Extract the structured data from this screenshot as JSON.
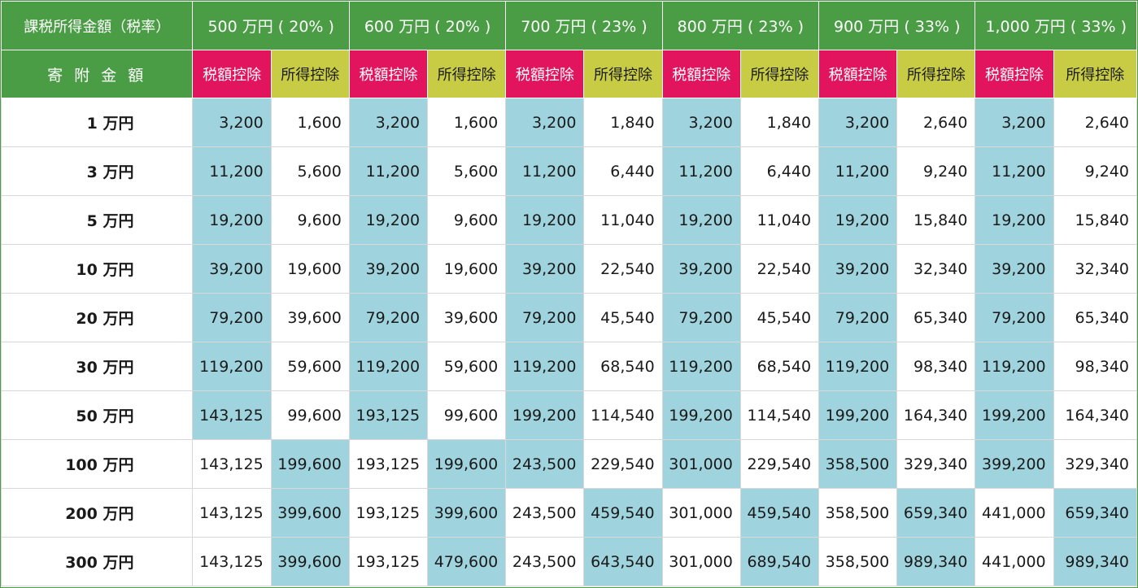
{
  "header": {
    "income_label": "課税所得金額（税率）",
    "donation_label": "寄 附 金 額",
    "brackets": [
      {
        "label": "500 万円 ( 20% )"
      },
      {
        "label": "600 万円 ( 20% )"
      },
      {
        "label": "700 万円 ( 23% )"
      },
      {
        "label": "800 万円 ( 23% )"
      },
      {
        "label": "900 万円 ( 33% )"
      },
      {
        "label": "1,000 万円 ( 33% )"
      }
    ],
    "tax_credit_label": "税額控除",
    "income_deduction_label": "所得控除"
  },
  "colors": {
    "header_green": "#4a9d45",
    "tax_credit_magenta": "#e2145e",
    "income_deduction_olive": "#c8cc45",
    "highlight_blue": "#9fd4de"
  },
  "rows": [
    {
      "amount": "1 万円",
      "values": [
        "3,200",
        "1,600",
        "3,200",
        "1,600",
        "3,200",
        "1,840",
        "3,200",
        "1,840",
        "3,200",
        "2,640",
        "3,200",
        "2,640"
      ],
      "highlight": [
        1,
        0,
        1,
        0,
        1,
        0,
        1,
        0,
        1,
        0,
        1,
        0
      ]
    },
    {
      "amount": "3 万円",
      "values": [
        "11,200",
        "5,600",
        "11,200",
        "5,600",
        "11,200",
        "6,440",
        "11,200",
        "6,440",
        "11,200",
        "9,240",
        "11,200",
        "9,240"
      ],
      "highlight": [
        1,
        0,
        1,
        0,
        1,
        0,
        1,
        0,
        1,
        0,
        1,
        0
      ]
    },
    {
      "amount": "5 万円",
      "values": [
        "19,200",
        "9,600",
        "19,200",
        "9,600",
        "19,200",
        "11,040",
        "19,200",
        "11,040",
        "19,200",
        "15,840",
        "19,200",
        "15,840"
      ],
      "highlight": [
        1,
        0,
        1,
        0,
        1,
        0,
        1,
        0,
        1,
        0,
        1,
        0
      ]
    },
    {
      "amount": "10 万円",
      "values": [
        "39,200",
        "19,600",
        "39,200",
        "19,600",
        "39,200",
        "22,540",
        "39,200",
        "22,540",
        "39,200",
        "32,340",
        "39,200",
        "32,340"
      ],
      "highlight": [
        1,
        0,
        1,
        0,
        1,
        0,
        1,
        0,
        1,
        0,
        1,
        0
      ]
    },
    {
      "amount": "20 万円",
      "values": [
        "79,200",
        "39,600",
        "79,200",
        "39,600",
        "79,200",
        "45,540",
        "79,200",
        "45,540",
        "79,200",
        "65,340",
        "79,200",
        "65,340"
      ],
      "highlight": [
        1,
        0,
        1,
        0,
        1,
        0,
        1,
        0,
        1,
        0,
        1,
        0
      ]
    },
    {
      "amount": "30 万円",
      "values": [
        "119,200",
        "59,600",
        "119,200",
        "59,600",
        "119,200",
        "68,540",
        "119,200",
        "68,540",
        "119,200",
        "98,340",
        "119,200",
        "98,340"
      ],
      "highlight": [
        1,
        0,
        1,
        0,
        1,
        0,
        1,
        0,
        1,
        0,
        1,
        0
      ]
    },
    {
      "amount": "50 万円",
      "values": [
        "143,125",
        "99,600",
        "193,125",
        "99,600",
        "199,200",
        "114,540",
        "199,200",
        "114,540",
        "199,200",
        "164,340",
        "199,200",
        "164,340"
      ],
      "highlight": [
        1,
        0,
        1,
        0,
        1,
        0,
        1,
        0,
        1,
        0,
        1,
        0
      ]
    },
    {
      "amount": "100 万円",
      "values": [
        "143,125",
        "199,600",
        "193,125",
        "199,600",
        "243,500",
        "229,540",
        "301,000",
        "229,540",
        "358,500",
        "329,340",
        "399,200",
        "329,340"
      ],
      "highlight": [
        0,
        1,
        0,
        1,
        1,
        0,
        1,
        0,
        1,
        0,
        1,
        0
      ]
    },
    {
      "amount": "200 万円",
      "values": [
        "143,125",
        "399,600",
        "193,125",
        "399,600",
        "243,500",
        "459,540",
        "301,000",
        "459,540",
        "358,500",
        "659,340",
        "441,000",
        "659,340"
      ],
      "highlight": [
        0,
        1,
        0,
        1,
        0,
        1,
        0,
        1,
        0,
        1,
        0,
        1
      ]
    },
    {
      "amount": "300 万円",
      "values": [
        "143,125",
        "399,600",
        "193,125",
        "479,600",
        "243,500",
        "643,540",
        "301,000",
        "689,540",
        "358,500",
        "989,340",
        "441,000",
        "989,340"
      ],
      "highlight": [
        0,
        1,
        0,
        1,
        0,
        1,
        0,
        1,
        0,
        1,
        0,
        1
      ]
    }
  ]
}
